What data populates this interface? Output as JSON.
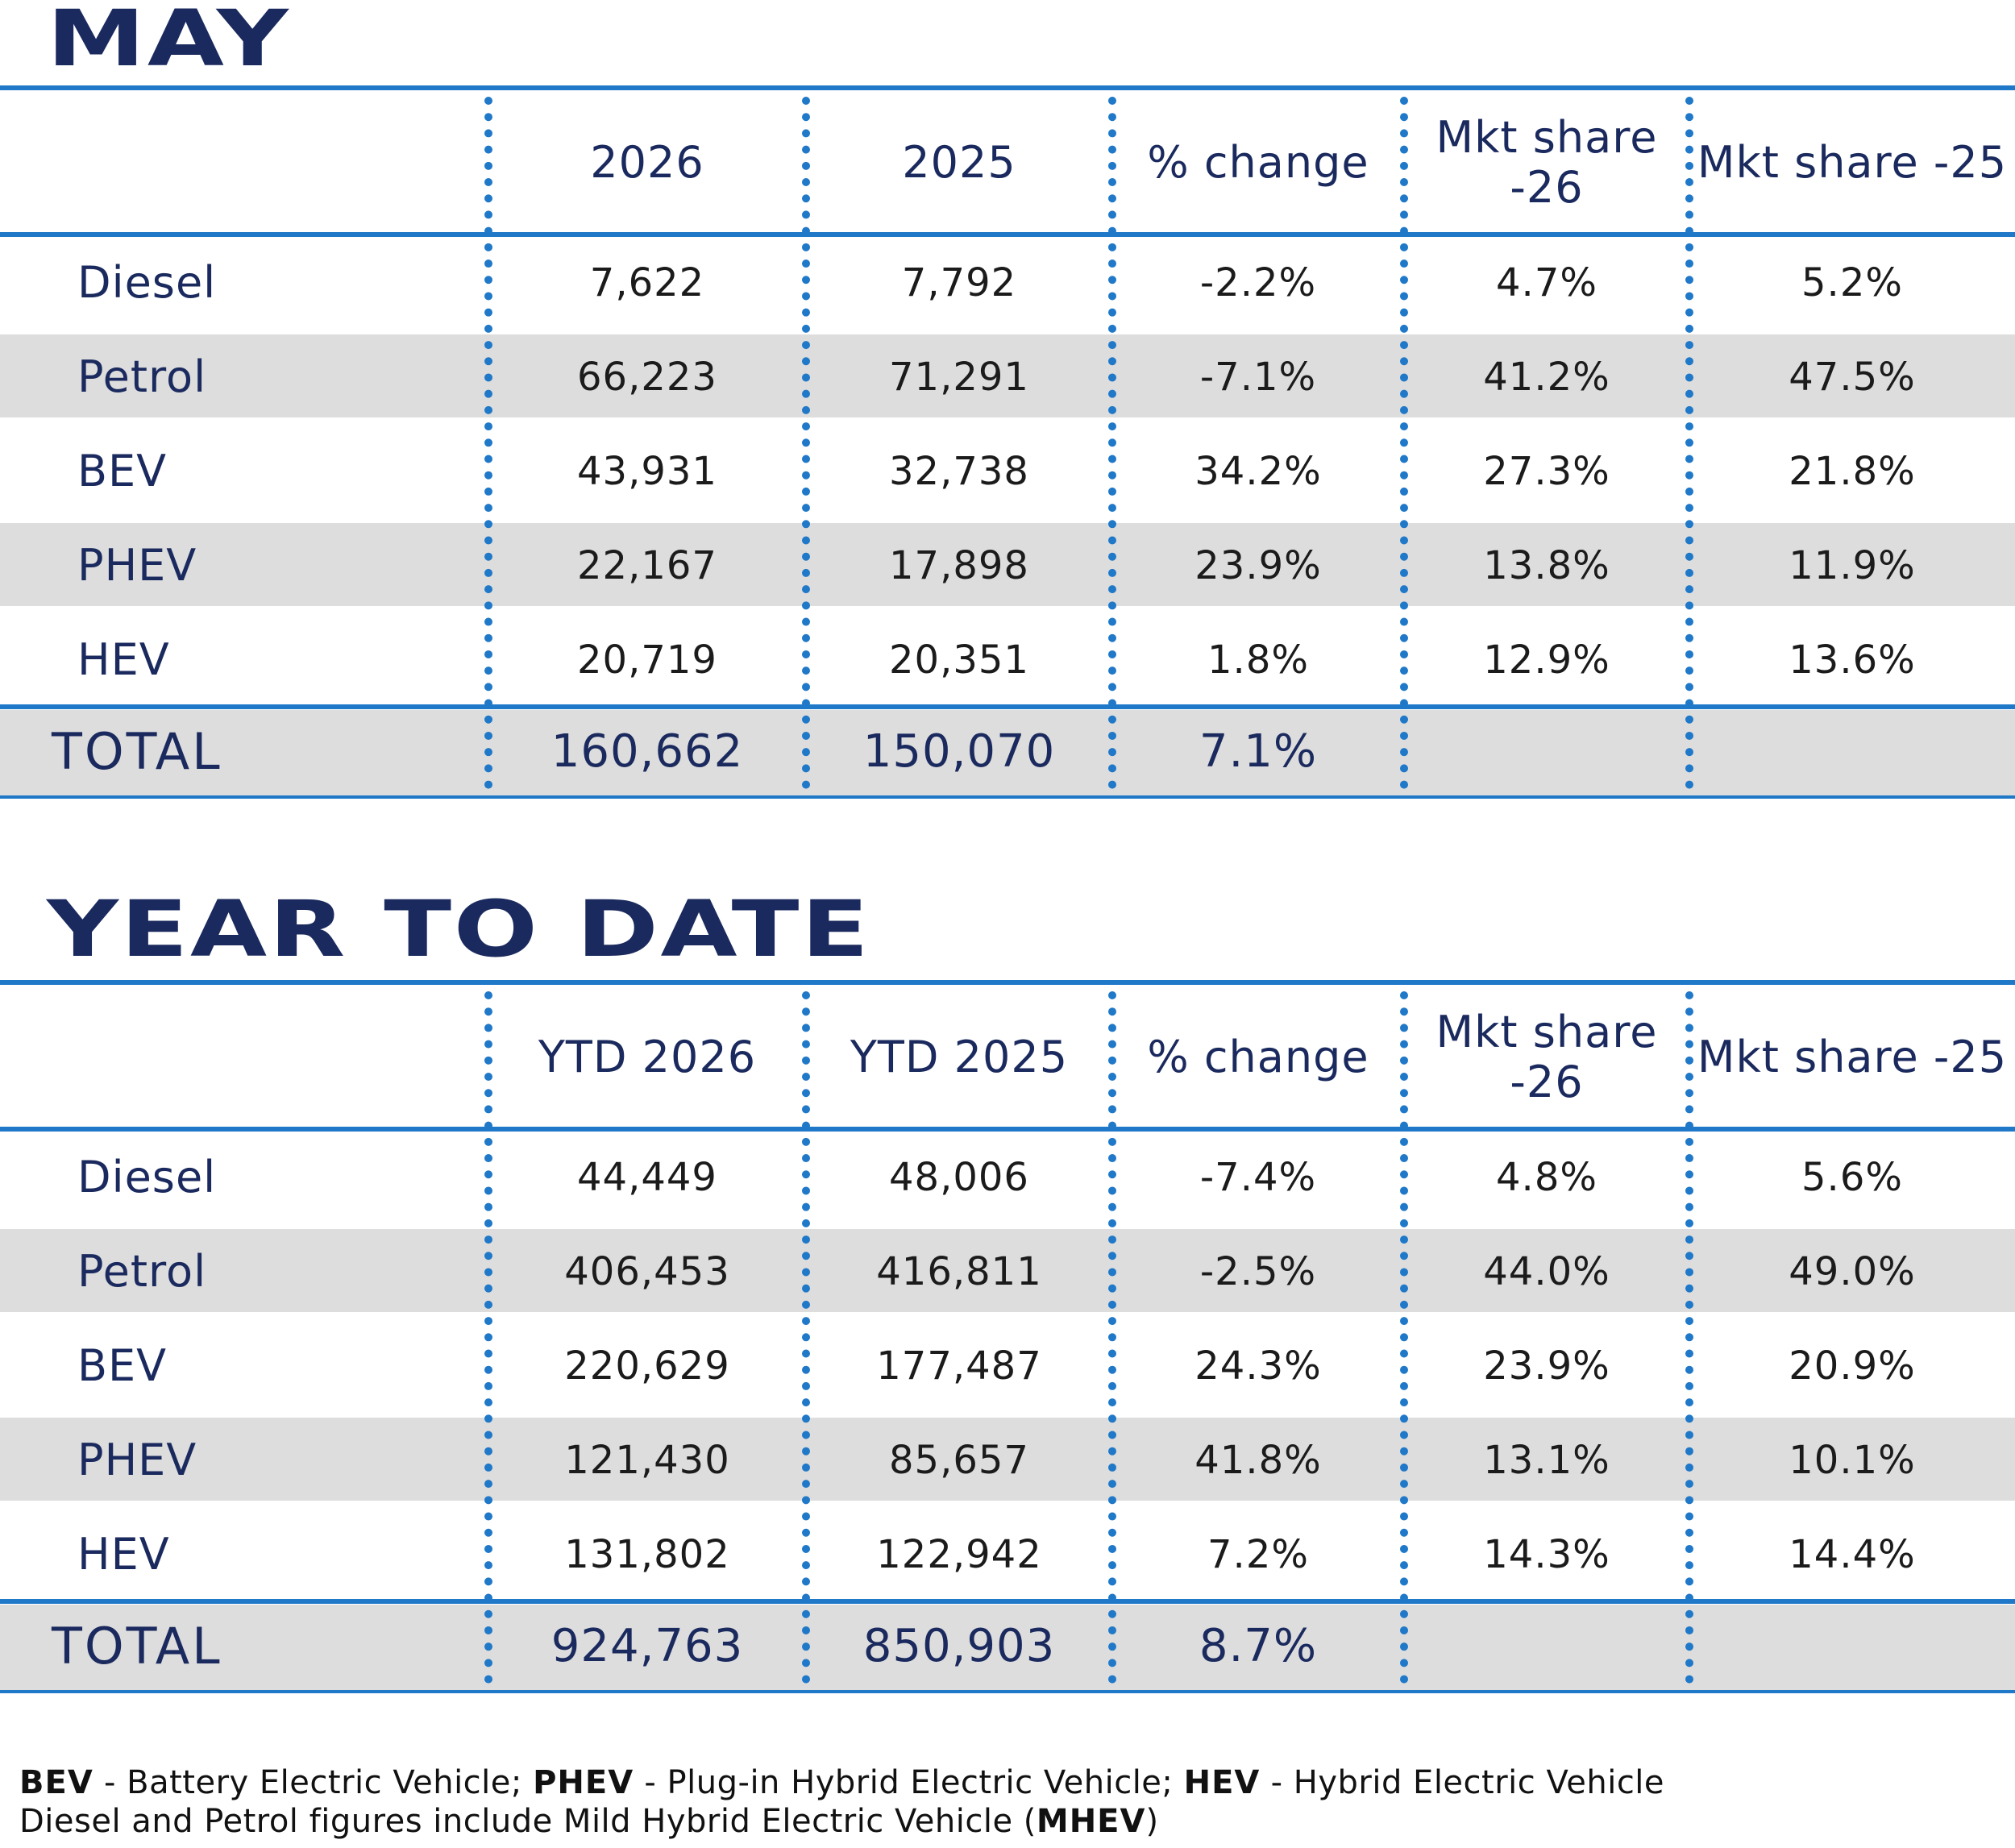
{
  "may": {
    "title": "MAY",
    "headers": [
      "",
      "2026",
      "2025",
      "% change",
      "Mkt share -26",
      "Mkt share -25"
    ],
    "rows": [
      {
        "label": "Diesel",
        "v2026": "7,622",
        "v2025": "7,792",
        "change": "-2.2%",
        "share26": "4.7%",
        "share25": "5.2%"
      },
      {
        "label": "Petrol",
        "v2026": "66,223",
        "v2025": "71,291",
        "change": "-7.1%",
        "share26": "41.2%",
        "share25": "47.5%"
      },
      {
        "label": "BEV",
        "v2026": "43,931",
        "v2025": "32,738",
        "change": "34.2%",
        "share26": "27.3%",
        "share25": "21.8%"
      },
      {
        "label": "PHEV",
        "v2026": "22,167",
        "v2025": "17,898",
        "change": "23.9%",
        "share26": "13.8%",
        "share25": "11.9%"
      },
      {
        "label": "HEV",
        "v2026": "20,719",
        "v2025": "20,351",
        "change": "1.8%",
        "share26": "12.9%",
        "share25": "13.6%"
      }
    ],
    "total": {
      "label": "TOTAL",
      "v2026": "160,662",
      "v2025": "150,070",
      "change": "7.1%"
    }
  },
  "ytd": {
    "title": "YEAR TO DATE",
    "headers": [
      "",
      "YTD 2026",
      "YTD 2025",
      "% change",
      "Mkt share -26",
      "Mkt share -25"
    ],
    "rows": [
      {
        "label": "Diesel",
        "v2026": "44,449",
        "v2025": "48,006",
        "change": "-7.4%",
        "share26": "4.8%",
        "share25": "5.6%"
      },
      {
        "label": "Petrol",
        "v2026": "406,453",
        "v2025": "416,811",
        "change": "-2.5%",
        "share26": "44.0%",
        "share25": "49.0%"
      },
      {
        "label": "BEV",
        "v2026": "220,629",
        "v2025": "177,487",
        "change": "24.3%",
        "share26": "23.9%",
        "share25": "20.9%"
      },
      {
        "label": "PHEV",
        "v2026": "121,430",
        "v2025": "85,657",
        "change": "41.8%",
        "share26": "13.1%",
        "share25": "10.1%"
      },
      {
        "label": "HEV",
        "v2026": "131,802",
        "v2025": "122,942",
        "change": "7.2%",
        "share26": "14.3%",
        "share25": "14.4%"
      }
    ],
    "total": {
      "label": "TOTAL",
      "v2026": "924,763",
      "v2025": "850,903",
      "change": "8.7%"
    }
  },
  "footnote": {
    "bev_abbr": "BEV",
    "bev_text": " - Battery Electric Vehicle; ",
    "phev_abbr": "PHEV",
    "phev_text": " - Plug-in Hybrid Electric Vehicle; ",
    "hev_abbr": "HEV",
    "hev_text": " - Hybrid Electric Vehicle",
    "line2_text": "Diesel and Petrol figures include Mild Hybrid Electric Vehicle (",
    "mhev_abbr": "MHEV",
    "line2_close": ")"
  },
  "colors": {
    "navy": "#1b2a5e",
    "accent_blue": "#1f78c8",
    "band_grey": "#dddddd"
  }
}
